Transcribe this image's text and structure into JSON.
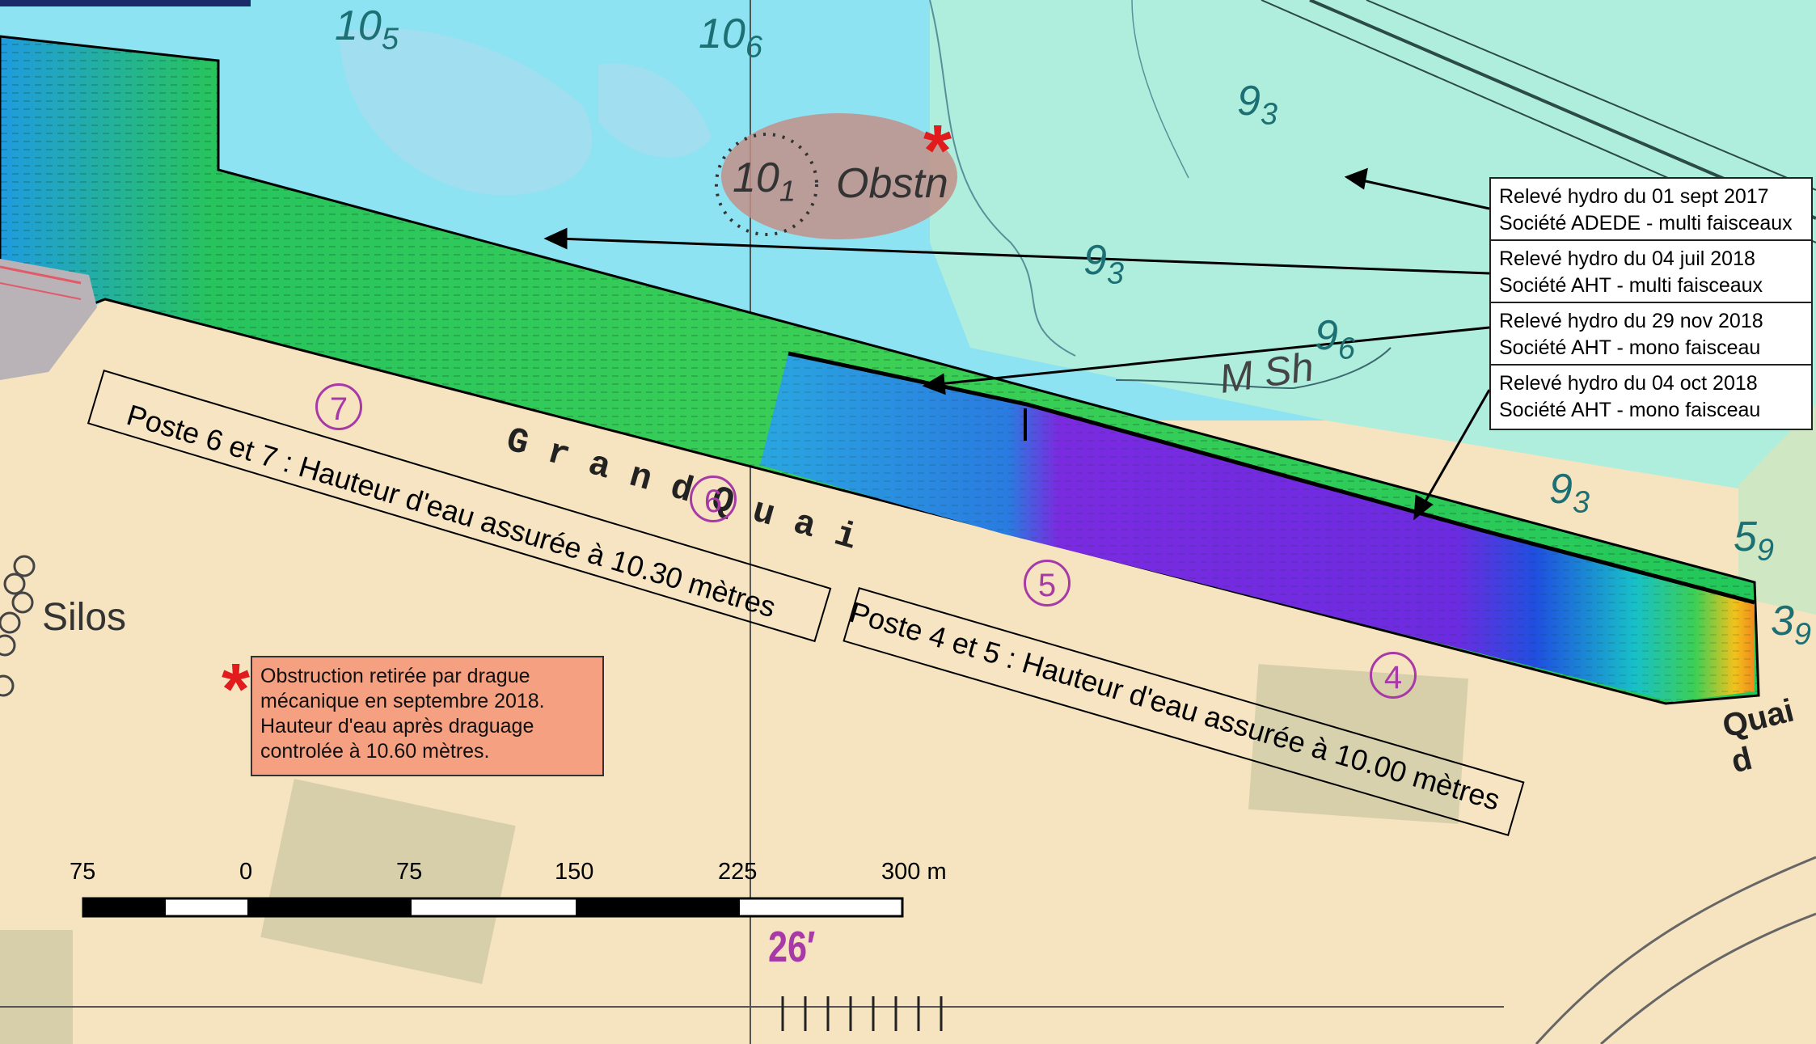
{
  "map": {
    "colors": {
      "deep_water": "#8ee3f2",
      "mid_water": "#afeedd",
      "land": "#f6e3bf",
      "survey_green": "#22c85a",
      "survey_blue": "#1f4fe0",
      "survey_purple": "#7a2be0",
      "note_fill": "#f4a081",
      "marker_red": "#e21c1c",
      "label_purple": "#a83aa8"
    },
    "legend": [
      {
        "line1": "Relevé hydro du 01 sept 2017",
        "line2": "Société ADEDE - multi faisceaux"
      },
      {
        "line1": "Relevé hydro du 04 juil 2018",
        "line2": "Société AHT - multi faisceaux"
      },
      {
        "line1": "Relevé hydro du 29 nov 2018",
        "line2": "Société AHT - mono faisceau"
      },
      {
        "line1": "Relevé hydro du 04 oct 2018",
        "line2": "Société AHT - mono faisceau"
      }
    ],
    "note": {
      "marker": "*",
      "line1": "Obstruction retirée par drague",
      "line2": "mécanique en septembre 2018.",
      "line3": "Hauteur d'eau après draguage",
      "line4": "controlée à 10.60 mètres."
    },
    "postes": {
      "p67": "Poste 6 et 7 : Hauteur d'eau assurée à 10.30 mètres",
      "p45": "Poste 4 et 5 : Hauteur d'eau assurée à 10.00 mètres"
    },
    "berth_numbers": [
      "7",
      "6",
      "5",
      "4"
    ],
    "quay_name": "G r a n d   Q u a i",
    "quay_right": "Quai d",
    "place_label": "Silos",
    "latitude_label": "26′",
    "obstruction": {
      "depth": "10",
      "depth_sub": "1",
      "label": "Obstn"
    },
    "seabed_label": "M Sh",
    "soundings": [
      {
        "main": "10",
        "sub": "5"
      },
      {
        "main": "10",
        "sub": "6"
      },
      {
        "main": "9",
        "sub": "3"
      },
      {
        "main": "9",
        "sub": "3"
      },
      {
        "main": "9",
        "sub": "6"
      },
      {
        "main": "9",
        "sub": "3"
      },
      {
        "main": "5",
        "sub": "9"
      },
      {
        "main": "3",
        "sub": "9"
      }
    ],
    "scale_bar": {
      "labels": [
        "75",
        "0",
        "75",
        "150",
        "225",
        "300 m"
      ]
    }
  }
}
